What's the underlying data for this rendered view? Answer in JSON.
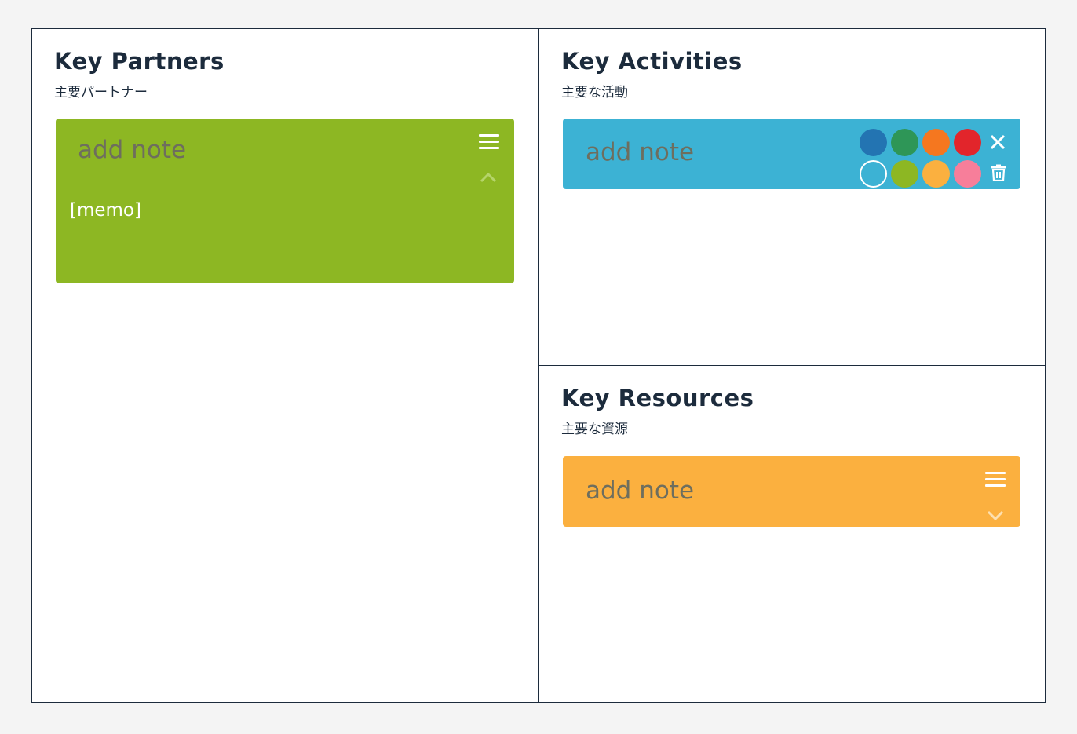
{
  "board": {
    "sections": {
      "key_partners": {
        "title": "Key Partners",
        "subtitle": "主要パートナー",
        "note": {
          "placeholder": "add note",
          "memo": "[memo]",
          "color": "#8db723",
          "state": "expanded",
          "menu_icon": "hamburger-menu-icon",
          "toggle_icon": "chevron-up-icon"
        }
      },
      "key_activities": {
        "title": "Key Activities",
        "subtitle": "主要な活動",
        "note": {
          "placeholder": "add note",
          "color": "#3cb2d4",
          "state": "color-picker-open",
          "palette": [
            {
              "name": "dark-blue",
              "color": "#2374b2"
            },
            {
              "name": "green",
              "color": "#2e9657"
            },
            {
              "name": "orange",
              "color": "#f5771f"
            },
            {
              "name": "red",
              "color": "#e2252b"
            },
            {
              "name": "light-blue",
              "color": "#3cb2d4",
              "selected": true
            },
            {
              "name": "lime",
              "color": "#8db723"
            },
            {
              "name": "amber",
              "color": "#fbb03f"
            },
            {
              "name": "pink",
              "color": "#f77e9a"
            }
          ],
          "close_icon": "close-icon",
          "delete_icon": "trash-icon"
        }
      },
      "key_resources": {
        "title": "Key Resources",
        "subtitle": "主要な資源",
        "note": {
          "placeholder": "add note",
          "color": "#fbb03f",
          "state": "collapsed",
          "menu_icon": "hamburger-menu-icon",
          "toggle_icon": "chevron-down-icon"
        }
      }
    }
  }
}
